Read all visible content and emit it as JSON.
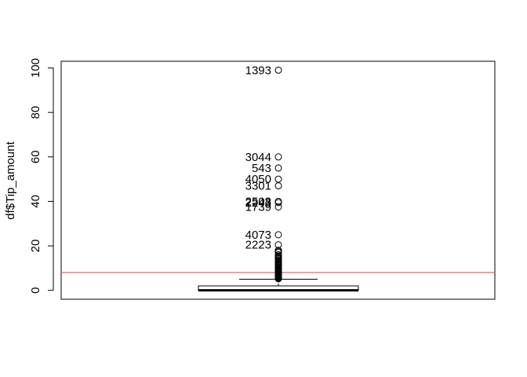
{
  "chart_data": {
    "type": "boxplot",
    "title": "",
    "xlabel": "",
    "ylabel": "df$Tip_amount",
    "ylim": [
      -4,
      103
    ],
    "yticks": [
      0,
      20,
      40,
      60,
      80,
      100
    ],
    "box": {
      "q1": 0,
      "median": 0,
      "q3": 2,
      "whisker_low": 0,
      "whisker_high": 5
    },
    "reference_line": {
      "y": 8,
      "color": "#e8636f"
    },
    "outliers": [
      5.2,
      5.5,
      5.8,
      6,
      6.3,
      6.6,
      6.9,
      7.2,
      7.5,
      7.8,
      8.1,
      8.4,
      8.7,
      9,
      9.3,
      9.6,
      10,
      10.5,
      11,
      11.5,
      12,
      12.5,
      13,
      13.5,
      14,
      14.5,
      15,
      15.5,
      16,
      17,
      17.5,
      18,
      20.5,
      25,
      37.5,
      39.5,
      40,
      47,
      50,
      55,
      60,
      99
    ],
    "labeled_outliers": [
      {
        "label": "1393",
        "value": 99
      },
      {
        "label": "3044",
        "value": 60
      },
      {
        "label": "543",
        "value": 55
      },
      {
        "label": "4050",
        "value": 50
      },
      {
        "label": "3301",
        "value": 47
      },
      {
        "label": "2508",
        "value": 40
      },
      {
        "label": "2243",
        "value": 39.5
      },
      {
        "label": "1739",
        "value": 37.5
      },
      {
        "label": "4073",
        "value": 25
      },
      {
        "label": "2223",
        "value": 20.5
      }
    ]
  }
}
